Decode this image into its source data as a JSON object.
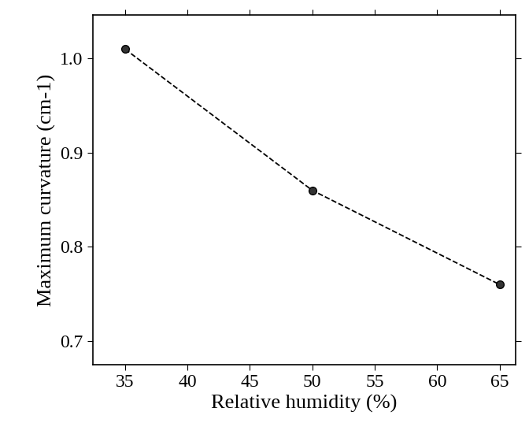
{
  "chart_data": {
    "type": "line",
    "x_label": "Relative humidity (%)",
    "y_label": "Maximum curvature (cm-1)",
    "x": [
      35,
      50,
      65
    ],
    "values": [
      1.01,
      0.86,
      0.76
    ],
    "color": "#000000",
    "marker": "o",
    "line_style": "dashed",
    "xlim": [
      32.4,
      66.3
    ],
    "ylim": [
      0.675,
      1.046
    ],
    "xticks": [
      35,
      40,
      45,
      50,
      55,
      60,
      65
    ],
    "yticks": [
      0.7,
      0.8,
      0.9,
      {
        "value": 1.0,
        "label": "1.0"
      }
    ],
    "grid": false
  }
}
